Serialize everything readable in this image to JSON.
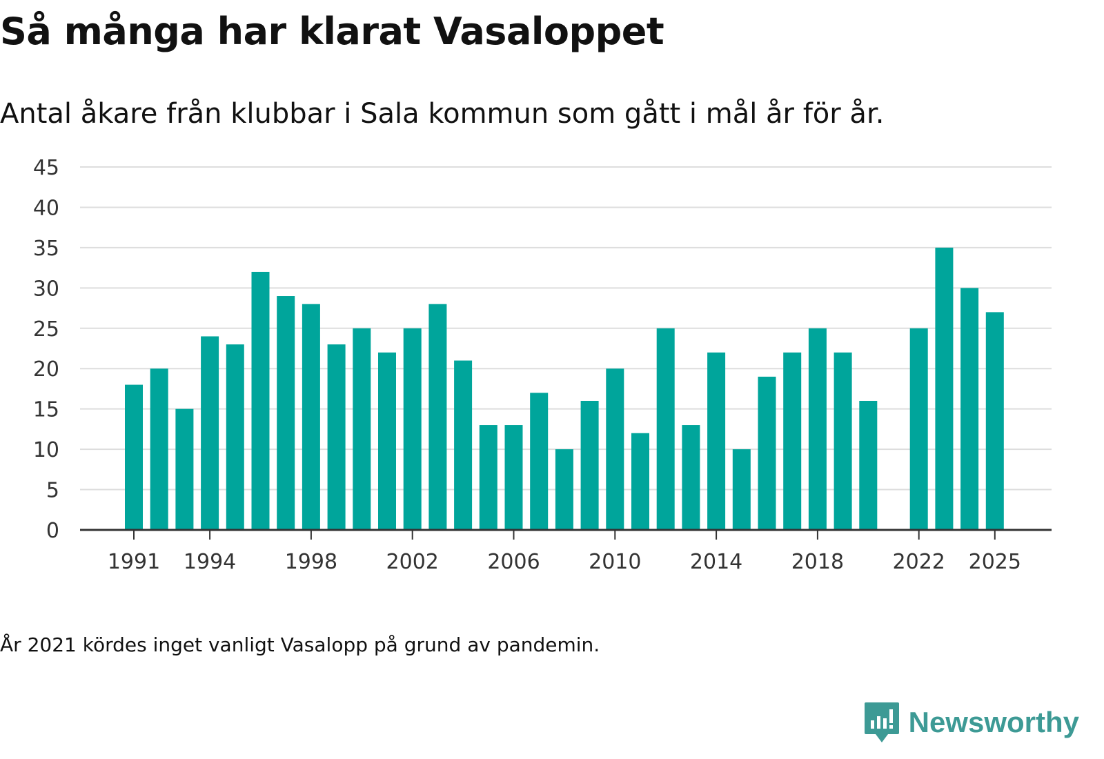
{
  "header": {
    "title": "Så många har klarat Vasaloppet",
    "subtitle": "Antal åkare från klubbar i Sala kommun som gått i mål år för år."
  },
  "footnote": "År 2021 kördes inget vanligt Vasalopp på grund av pandemin.",
  "brand": {
    "name": "Newsworthy",
    "icon": "newsworthy-logo-icon",
    "color": "#3d9a95"
  },
  "colors": {
    "bar": "#00a59b",
    "grid": "#dddddd",
    "axis": "#333333"
  },
  "chart_data": {
    "type": "bar",
    "title": "Så många har klarat Vasaloppet",
    "xlabel": "",
    "ylabel": "",
    "ylim": [
      0,
      45
    ],
    "yticks": [
      0,
      5,
      10,
      15,
      20,
      25,
      30,
      35,
      40,
      45
    ],
    "xticks": [
      1991,
      1994,
      1998,
      2002,
      2006,
      2010,
      2014,
      2018,
      2022,
      2025
    ],
    "grid": true,
    "categories": [
      1991,
      1992,
      1993,
      1994,
      1995,
      1996,
      1997,
      1998,
      1999,
      2000,
      2001,
      2002,
      2003,
      2004,
      2005,
      2006,
      2007,
      2008,
      2009,
      2010,
      2011,
      2012,
      2013,
      2014,
      2015,
      2016,
      2017,
      2018,
      2019,
      2020,
      2021,
      2022,
      2023,
      2024,
      2025
    ],
    "values": [
      18,
      20,
      15,
      24,
      23,
      32,
      29,
      28,
      23,
      25,
      22,
      25,
      28,
      21,
      13,
      13,
      17,
      10,
      16,
      20,
      12,
      25,
      13,
      22,
      10,
      19,
      22,
      25,
      22,
      16,
      null,
      25,
      35,
      30,
      27
    ]
  }
}
